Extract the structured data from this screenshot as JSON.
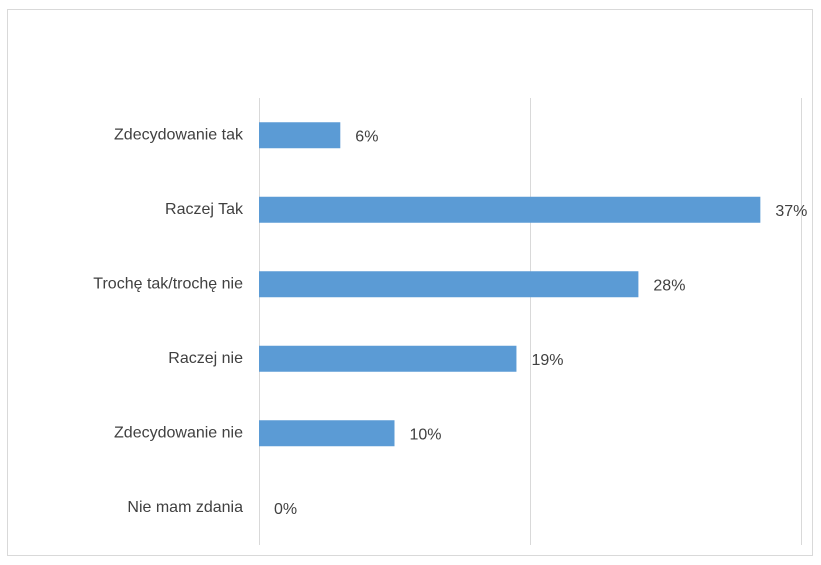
{
  "chart_data": {
    "type": "hbar",
    "categories": [
      "Zdecydowanie tak",
      "Raczej Tak",
      "Trochę tak/trochę nie",
      "Raczej nie",
      "Zdecydowanie nie",
      "Nie mam zdania"
    ],
    "values": [
      6,
      37,
      28,
      19,
      10,
      0
    ],
    "value_labels": [
      "6%",
      "37%",
      "28%",
      "19%",
      "10%",
      "0%"
    ],
    "color": "#5b9bd5",
    "xlim": [
      0,
      40
    ],
    "xticks": [
      0,
      20,
      40
    ],
    "grid": true
  }
}
